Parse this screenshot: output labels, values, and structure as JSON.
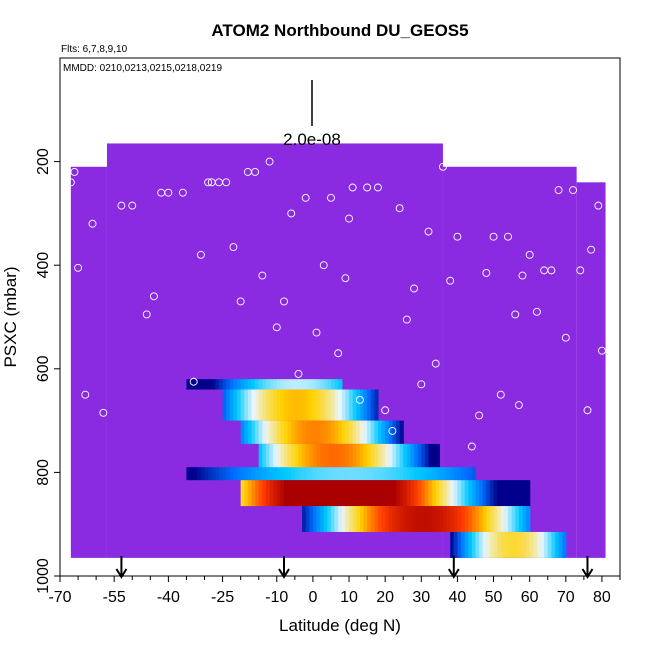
{
  "chart_data": {
    "type": "heatmap",
    "title": "ATOM2 Northbound DU_GEOS5",
    "subtitle_flights": "Flts: 6,7,8,9,10",
    "subtitle_dates": "MMDD: 0210,0213,0215,0218,0219",
    "xlabel": "Latitude (deg N)",
    "ylabel": "PSXC (mbar)",
    "xlim": [
      -70,
      85
    ],
    "ylim": [
      1000,
      0
    ],
    "x_ticks": [
      -70,
      -55,
      -40,
      -25,
      -10,
      0,
      10,
      20,
      30,
      40,
      50,
      60,
      70,
      80
    ],
    "x_tick_labels": [
      "-70",
      "-55",
      "-40",
      "-25",
      "-10",
      "0",
      "10",
      "20",
      "30",
      "40",
      "50",
      "60",
      "70",
      "80"
    ],
    "y_ticks": [
      200,
      400,
      600,
      800,
      1000
    ],
    "y_tick_labels": [
      "200",
      "400",
      "600",
      "800",
      "1000"
    ],
    "scale_value": 2e-08,
    "scale_label": "2.0e-08",
    "background_color": "#8a2be2",
    "arrows_lat": [
      -53,
      -8,
      39,
      76
    ],
    "curtain_columns": [
      {
        "x0": -57,
        "x1": 36,
        "ptop": 165
      },
      {
        "x0": 36,
        "x1": 73,
        "ptop": 210
      },
      {
        "x0": 73,
        "x1": 81,
        "ptop": 240
      },
      {
        "x0": -67,
        "x1": -57,
        "ptop": 210
      }
    ],
    "plumes": [
      {
        "x0": -35,
        "x1": 8,
        "p0": 620,
        "p1": 640,
        "peak": 0.45,
        "center": -5
      },
      {
        "x0": -25,
        "x1": 18,
        "p0": 640,
        "p1": 700,
        "peak": 0.65,
        "center": -5
      },
      {
        "x0": -20,
        "x1": 25,
        "p0": 700,
        "p1": 745,
        "peak": 0.7,
        "center": 0
      },
      {
        "x0": -15,
        "x1": 35,
        "p0": 745,
        "p1": 800,
        "peak": 0.72,
        "center": 5
      },
      {
        "x0": -35,
        "x1": 45,
        "p0": 790,
        "p1": 815,
        "peak": 0.4,
        "center": 10
      },
      {
        "x0": -20,
        "x1": 60,
        "p0": 815,
        "p1": 865,
        "peak": 1.0,
        "center": 7
      },
      {
        "x0": -3,
        "x1": 60,
        "p0": 865,
        "p1": 915,
        "peak": 0.85,
        "center": 30
      },
      {
        "x0": 38,
        "x1": 70,
        "p0": 915,
        "p1": 965,
        "peak": 0.6,
        "center": 55
      }
    ],
    "sample_points": [
      {
        "x": -67,
        "p": 240
      },
      {
        "x": -66,
        "p": 220
      },
      {
        "x": -65,
        "p": 405
      },
      {
        "x": -63,
        "p": 650
      },
      {
        "x": -61,
        "p": 320
      },
      {
        "x": -58,
        "p": 685
      },
      {
        "x": -53,
        "p": 285
      },
      {
        "x": -50,
        "p": 285
      },
      {
        "x": -46,
        "p": 495
      },
      {
        "x": -44,
        "p": 460
      },
      {
        "x": -42,
        "p": 260
      },
      {
        "x": -40,
        "p": 260
      },
      {
        "x": -36,
        "p": 260
      },
      {
        "x": -33,
        "p": 625
      },
      {
        "x": -31,
        "p": 380
      },
      {
        "x": -29,
        "p": 240
      },
      {
        "x": -28,
        "p": 240
      },
      {
        "x": -26,
        "p": 240
      },
      {
        "x": -24,
        "p": 240
      },
      {
        "x": -22,
        "p": 365
      },
      {
        "x": -20,
        "p": 470
      },
      {
        "x": -18,
        "p": 220
      },
      {
        "x": -16,
        "p": 220
      },
      {
        "x": -14,
        "p": 420
      },
      {
        "x": -12,
        "p": 200
      },
      {
        "x": -10,
        "p": 520
      },
      {
        "x": -8,
        "p": 470
      },
      {
        "x": -6,
        "p": 300
      },
      {
        "x": -4,
        "p": 610
      },
      {
        "x": -2,
        "p": 270
      },
      {
        "x": 1,
        "p": 530
      },
      {
        "x": 3,
        "p": 400
      },
      {
        "x": 5,
        "p": 270
      },
      {
        "x": 7,
        "p": 570
      },
      {
        "x": 9,
        "p": 425
      },
      {
        "x": 10,
        "p": 310
      },
      {
        "x": 11,
        "p": 250
      },
      {
        "x": 13,
        "p": 660
      },
      {
        "x": 15,
        "p": 250
      },
      {
        "x": 18,
        "p": 250
      },
      {
        "x": 20,
        "p": 680
      },
      {
        "x": 22,
        "p": 720
      },
      {
        "x": 24,
        "p": 290
      },
      {
        "x": 26,
        "p": 505
      },
      {
        "x": 28,
        "p": 445
      },
      {
        "x": 30,
        "p": 630
      },
      {
        "x": 32,
        "p": 335
      },
      {
        "x": 34,
        "p": 590
      },
      {
        "x": 36,
        "p": 210
      },
      {
        "x": 38,
        "p": 430
      },
      {
        "x": 40,
        "p": 345
      },
      {
        "x": 44,
        "p": 750
      },
      {
        "x": 46,
        "p": 690
      },
      {
        "x": 48,
        "p": 415
      },
      {
        "x": 50,
        "p": 345
      },
      {
        "x": 52,
        "p": 650
      },
      {
        "x": 54,
        "p": 345
      },
      {
        "x": 56,
        "p": 495
      },
      {
        "x": 57,
        "p": 670
      },
      {
        "x": 58,
        "p": 420
      },
      {
        "x": 60,
        "p": 380
      },
      {
        "x": 62,
        "p": 490
      },
      {
        "x": 64,
        "p": 410
      },
      {
        "x": 66,
        "p": 410
      },
      {
        "x": 68,
        "p": 255
      },
      {
        "x": 70,
        "p": 540
      },
      {
        "x": 72,
        "p": 255
      },
      {
        "x": 74,
        "p": 410
      },
      {
        "x": 76,
        "p": 680
      },
      {
        "x": 77,
        "p": 370
      },
      {
        "x": 79,
        "p": 285
      },
      {
        "x": 80,
        "p": 565
      }
    ]
  }
}
